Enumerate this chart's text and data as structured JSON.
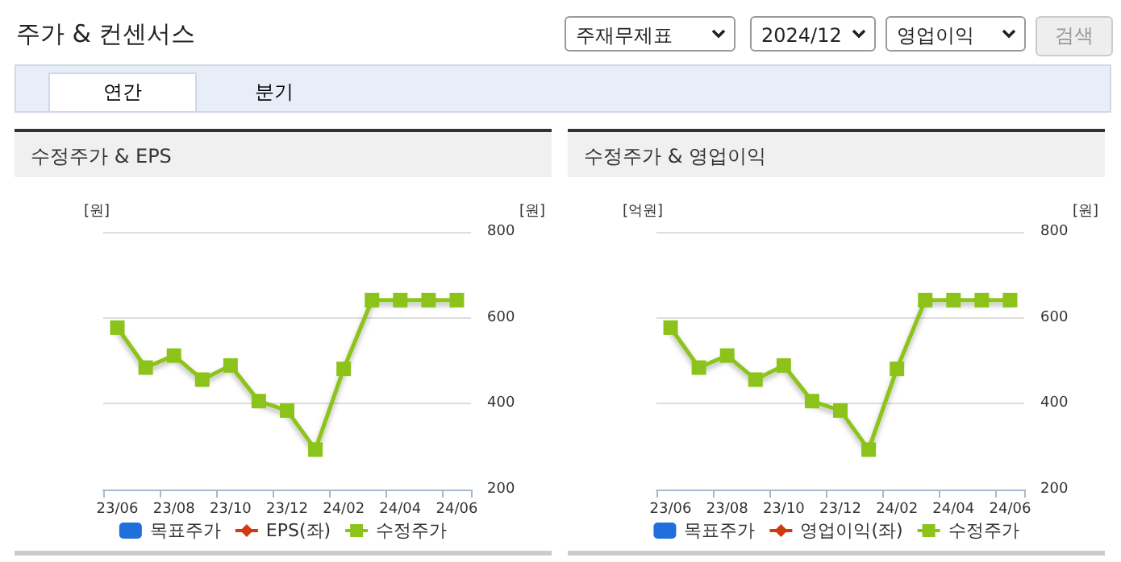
{
  "chart_data": [
    {
      "type": "other",
      "title": "주가 & 컨센서스",
      "annotations": [
        "주재무제표",
        "2024/12",
        "영업이익",
        "검색",
        "연간",
        "분기"
      ]
    },
    {
      "type": "line",
      "title": "수정주가 & EPS",
      "ylabel": "[원]",
      "y2label": "[원]",
      "categories": [
        "23/06",
        null,
        "23/08",
        null,
        "23/10",
        null,
        "23/12",
        null,
        "24/02",
        null,
        "24/04",
        null,
        "24/06"
      ],
      "series": [
        {
          "name": "목표주가",
          "type": "bar",
          "color": "#1f6fdd",
          "axis": "y2",
          "values": [
            null,
            null,
            null,
            null,
            null,
            null,
            null,
            null,
            null,
            null,
            null,
            null,
            null
          ]
        },
        {
          "name": "EPS(좌)",
          "type": "line",
          "color": "#d03a10",
          "marker": "diamond",
          "values": [
            null,
            null,
            null,
            null,
            null,
            null,
            null,
            null,
            null,
            null,
            null,
            null,
            null
          ]
        },
        {
          "name": "수정주가",
          "type": "line",
          "color": "#8cc31a",
          "marker": "square",
          "axis": "y2",
          "values": [
            577,
            484,
            512,
            456,
            489,
            406,
            384,
            293,
            481,
            641,
            641,
            641,
            641
          ]
        }
      ],
      "y2lim": [
        200,
        800
      ],
      "y2ticks": [
        200,
        400,
        600,
        800
      ],
      "grid": "y",
      "legend": "bottom",
      "line_style": "solid"
    },
    {
      "type": "line",
      "title": "수정주가 & 영업이익",
      "ylabel": "[억원]",
      "y2label": "[원]",
      "categories": [
        "23/06",
        null,
        "23/08",
        null,
        "23/10",
        null,
        "23/12",
        null,
        "24/02",
        null,
        "24/04",
        null,
        "24/06"
      ],
      "series": [
        {
          "name": "목표주가",
          "type": "bar",
          "color": "#1f6fdd",
          "axis": "y2",
          "values": [
            null,
            null,
            null,
            null,
            null,
            null,
            null,
            null,
            null,
            null,
            null,
            null,
            null
          ]
        },
        {
          "name": "영업이익(좌)",
          "type": "line",
          "color": "#d03a10",
          "marker": "diamond",
          "values": [
            null,
            null,
            null,
            null,
            null,
            null,
            null,
            null,
            null,
            null,
            null,
            null,
            null
          ]
        },
        {
          "name": "수정주가",
          "type": "line",
          "color": "#8cc31a",
          "marker": "square",
          "axis": "y2",
          "values": [
            577,
            484,
            512,
            456,
            489,
            406,
            384,
            293,
            481,
            641,
            641,
            641,
            641
          ]
        }
      ],
      "y2lim": [
        200,
        800
      ],
      "y2ticks": [
        200,
        400,
        600,
        800
      ],
      "grid": "y",
      "legend": "bottom",
      "line_style": "solid"
    }
  ]
}
